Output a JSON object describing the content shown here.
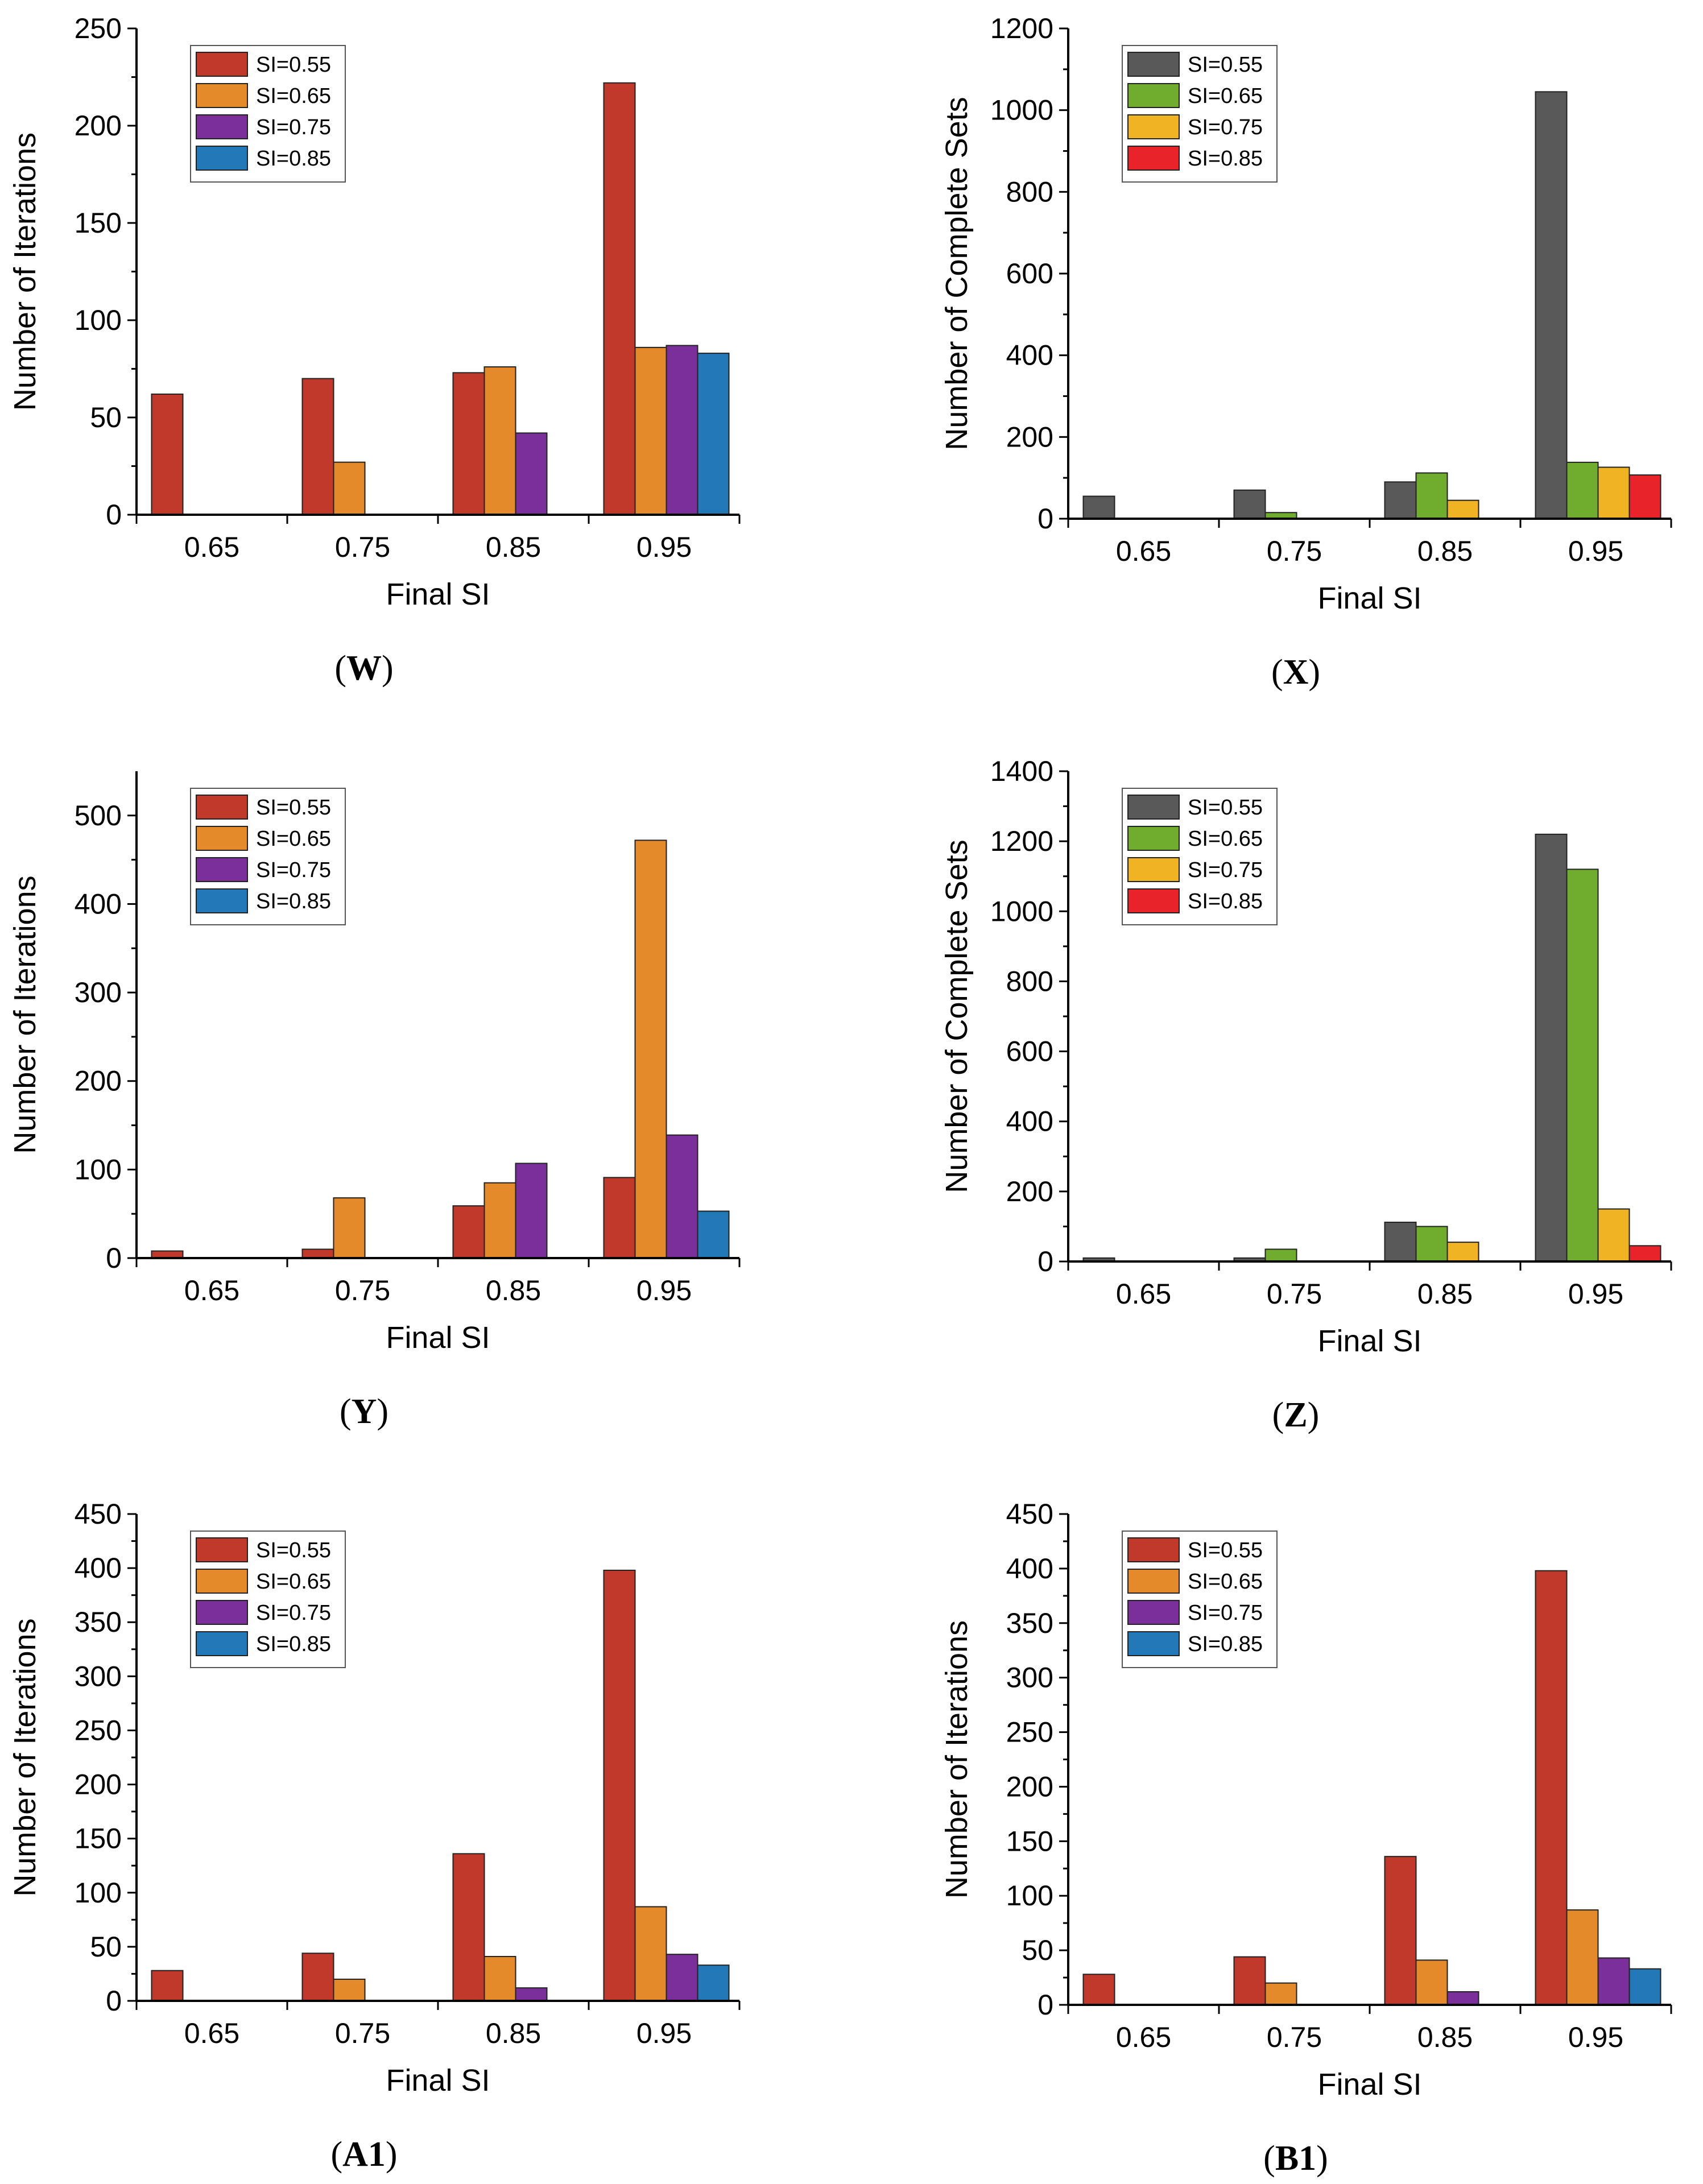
{
  "chart_data": [
    {
      "panel": "W",
      "type": "bar",
      "title": "",
      "xlabel": "Final SI",
      "ylabel": "Number of Iterations",
      "categories": [
        "0.65",
        "0.75",
        "0.85",
        "0.95"
      ],
      "ylim": [
        0,
        250
      ],
      "yticks": [
        0,
        50,
        100,
        150,
        200,
        250
      ],
      "legend_position": "top-left",
      "series": [
        {
          "name": "SI=0.55",
          "color": "#C0392B",
          "values": [
            62,
            70,
            73,
            222
          ]
        },
        {
          "name": "SI=0.65",
          "color": "#E58A2B",
          "values": [
            null,
            27,
            76,
            86
          ]
        },
        {
          "name": "SI=0.75",
          "color": "#7B2F9A",
          "values": [
            null,
            null,
            42,
            87
          ]
        },
        {
          "name": "SI=0.85",
          "color": "#2379B8",
          "values": [
            null,
            null,
            null,
            83
          ]
        }
      ]
    },
    {
      "panel": "X",
      "type": "bar",
      "title": "",
      "xlabel": "Final SI",
      "ylabel": "Number of Complete Sets",
      "categories": [
        "0.65",
        "0.75",
        "0.85",
        "0.95"
      ],
      "ylim": [
        0,
        1200
      ],
      "yticks": [
        0,
        200,
        400,
        600,
        800,
        1000,
        1200
      ],
      "legend_position": "top-left",
      "series": [
        {
          "name": "SI=0.55",
          "color": "#595959",
          "values": [
            55,
            70,
            90,
            1045
          ]
        },
        {
          "name": "SI=0.65",
          "color": "#70AD2F",
          "values": [
            null,
            15,
            112,
            138
          ]
        },
        {
          "name": "SI=0.75",
          "color": "#F0B323",
          "values": [
            null,
            null,
            45,
            126
          ]
        },
        {
          "name": "SI=0.85",
          "color": "#E8242A",
          "values": [
            null,
            null,
            null,
            107
          ]
        }
      ]
    },
    {
      "panel": "Y",
      "type": "bar",
      "title": "",
      "xlabel": "Final SI",
      "ylabel": "Number of Iterations",
      "categories": [
        "0.65",
        "0.75",
        "0.85",
        "0.95"
      ],
      "ylim": [
        0,
        550
      ],
      "yticks": [
        0,
        100,
        200,
        300,
        400,
        500
      ],
      "legend_position": "top-left",
      "series": [
        {
          "name": "SI=0.55",
          "color": "#C0392B",
          "values": [
            8,
            10,
            59,
            91
          ]
        },
        {
          "name": "SI=0.65",
          "color": "#E58A2B",
          "values": [
            null,
            68,
            85,
            472
          ]
        },
        {
          "name": "SI=0.75",
          "color": "#7B2F9A",
          "values": [
            null,
            null,
            107,
            139
          ]
        },
        {
          "name": "SI=0.85",
          "color": "#2379B8",
          "values": [
            null,
            null,
            null,
            53
          ]
        }
      ]
    },
    {
      "panel": "Z",
      "type": "bar",
      "title": "",
      "xlabel": "Final SI",
      "ylabel": "Number of Complete Sets",
      "categories": [
        "0.65",
        "0.75",
        "0.85",
        "0.95"
      ],
      "ylim": [
        0,
        1400
      ],
      "yticks": [
        0,
        200,
        400,
        600,
        800,
        1000,
        1200,
        1400
      ],
      "legend_position": "top-left",
      "series": [
        {
          "name": "SI=0.55",
          "color": "#595959",
          "values": [
            10,
            10,
            112,
            1220
          ]
        },
        {
          "name": "SI=0.65",
          "color": "#70AD2F",
          "values": [
            null,
            35,
            100,
            1120
          ]
        },
        {
          "name": "SI=0.75",
          "color": "#F0B323",
          "values": [
            null,
            null,
            55,
            150
          ]
        },
        {
          "name": "SI=0.85",
          "color": "#E8242A",
          "values": [
            null,
            null,
            null,
            45
          ]
        }
      ]
    },
    {
      "panel": "A1",
      "type": "bar",
      "title": "",
      "xlabel": "Final SI",
      "ylabel": "Number of Iterations",
      "categories": [
        "0.65",
        "0.75",
        "0.85",
        "0.95"
      ],
      "ylim": [
        0,
        450
      ],
      "yticks": [
        0,
        50,
        100,
        150,
        200,
        250,
        300,
        350,
        400,
        450
      ],
      "legend_position": "top-left",
      "series": [
        {
          "name": "SI=0.55",
          "color": "#C0392B",
          "values": [
            28,
            44,
            136,
            398
          ]
        },
        {
          "name": "SI=0.65",
          "color": "#E58A2B",
          "values": [
            null,
            20,
            41,
            87
          ]
        },
        {
          "name": "SI=0.75",
          "color": "#7B2F9A",
          "values": [
            null,
            null,
            12,
            43
          ]
        },
        {
          "name": "SI=0.85",
          "color": "#2379B8",
          "values": [
            null,
            null,
            null,
            33
          ]
        }
      ]
    },
    {
      "panel": "B1",
      "type": "bar",
      "title": "",
      "xlabel": "Final SI",
      "ylabel": "Number of Iterations",
      "categories": [
        "0.65",
        "0.75",
        "0.85",
        "0.95"
      ],
      "ylim": [
        0,
        450
      ],
      "yticks": [
        0,
        50,
        100,
        150,
        200,
        250,
        300,
        350,
        400,
        450
      ],
      "legend_position": "top-left",
      "series": [
        {
          "name": "SI=0.55",
          "color": "#C0392B",
          "values": [
            28,
            44,
            136,
            398
          ]
        },
        {
          "name": "SI=0.65",
          "color": "#E58A2B",
          "values": [
            null,
            20,
            41,
            87
          ]
        },
        {
          "name": "SI=0.75",
          "color": "#7B2F9A",
          "values": [
            null,
            null,
            12,
            43
          ]
        },
        {
          "name": "SI=0.85",
          "color": "#2379B8",
          "values": [
            null,
            null,
            null,
            33
          ]
        }
      ]
    }
  ]
}
